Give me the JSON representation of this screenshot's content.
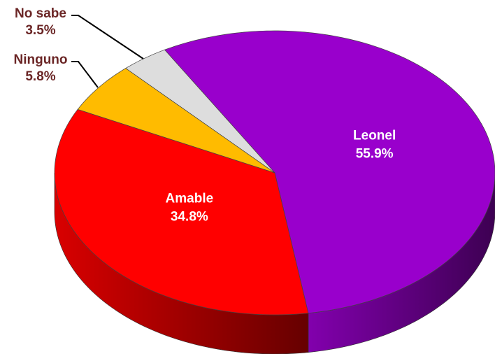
{
  "chart_data": {
    "type": "pie",
    "categories": [
      "Leonel",
      "Amable",
      "Ninguno",
      "No sabe"
    ],
    "values": [
      55.9,
      34.8,
      5.8,
      3.5
    ],
    "value_labels": [
      "55.9%",
      "34.8%",
      "5.8%",
      "3.5%"
    ],
    "colors": [
      "#9900cc",
      "#ff0000",
      "#ffbb00",
      "#dddddd"
    ]
  }
}
